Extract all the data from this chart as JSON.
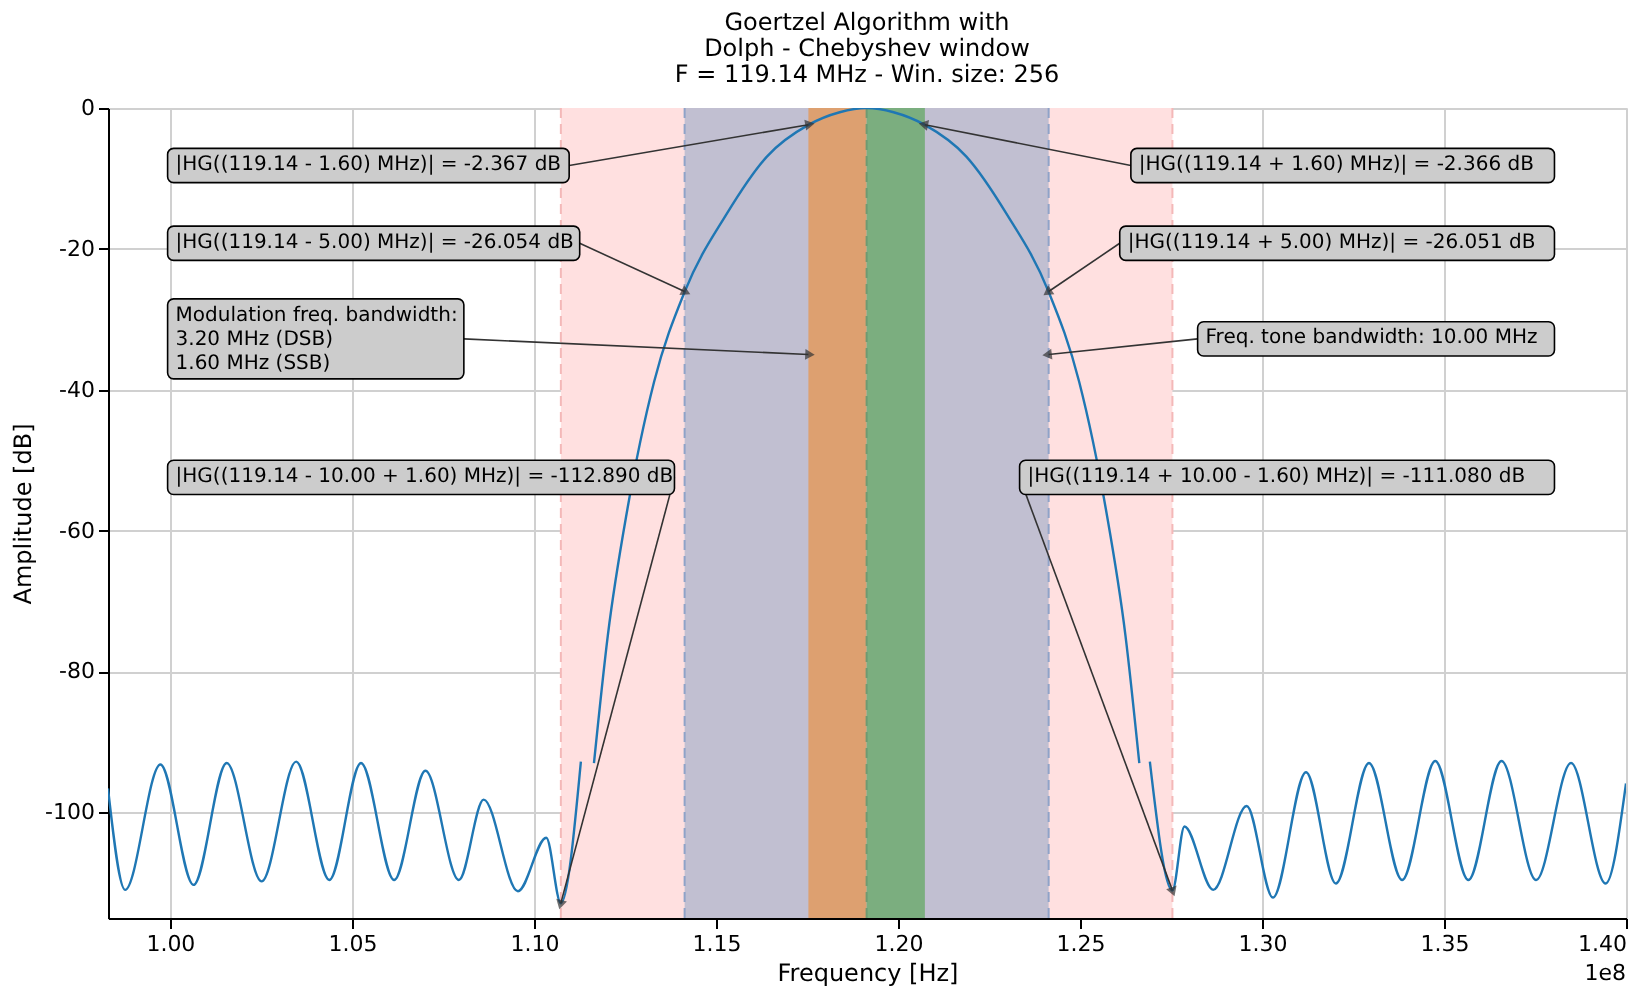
{
  "chart_data": {
    "type": "line",
    "title": "Goertzel Algorithm with\nDolph - Chebyshev window\nF = 119.14 MHz - Win. size: 256",
    "xlabel": "Frequency [Hz]",
    "ylabel": "Amplitude [dB]",
    "xlim": [
      0.983,
      1.4
    ],
    "xticks": [
      {
        "value": 1.0,
        "label": "1.00"
      },
      {
        "value": 1.05,
        "label": "1.05"
      },
      {
        "value": 1.1,
        "label": "1.10"
      },
      {
        "value": 1.15,
        "label": "1.15"
      },
      {
        "value": 1.2,
        "label": "1.20"
      },
      {
        "value": 1.25,
        "label": "1.25"
      },
      {
        "value": 1.3,
        "label": "1.30"
      },
      {
        "value": 1.35,
        "label": "1.35"
      },
      {
        "value": 1.4,
        "label": "1.40"
      }
    ],
    "ylim": [
      -115,
      0
    ],
    "yticks": [
      -100,
      -80,
      -60,
      -40,
      -20,
      0
    ],
    "grid": true,
    "line_style": "solid",
    "series": [
      {
        "color": "#1f77b4",
        "x": [
          0.983,
          0.9877,
          0.9974,
          1.0065,
          1.0156,
          1.0252,
          1.0347,
          1.0438,
          1.0525,
          1.0616,
          1.0702,
          1.0794,
          1.0862,
          1.0956,
          1.1034,
          1.1074,
          1.1129,
          1.1153,
          1.1165,
          1.1203,
          1.1257,
          1.133,
          1.1414,
          1.153,
          1.164,
          1.1754,
          1.184,
          1.1914,
          1.1988,
          1.2074,
          1.2188,
          1.2298,
          1.2414,
          1.2498,
          1.2571,
          1.2625,
          1.2663,
          1.267,
          1.2692,
          1.2754,
          1.2787,
          1.2866,
          1.2958,
          1.303,
          1.3121,
          1.3203,
          1.3294,
          1.3385,
          1.3476,
          1.3567,
          1.3658,
          1.3753,
          1.3849,
          1.3944,
          1.4
        ],
        "values": [
          -96.6,
          -111,
          -93.2,
          -110.3,
          -93.0,
          -109.8,
          -92.8,
          -109.6,
          -93.0,
          -109.6,
          -94.1,
          -109.6,
          -98.2,
          -111.2,
          -103.6,
          -112.9,
          -92.8,
          null,
          -93,
          -74.9,
          -56.9,
          -38.9,
          -26.1,
          -15,
          -6.9,
          -2.4,
          -0.6,
          0,
          -0.6,
          -2.4,
          -6.9,
          -15,
          -26.1,
          -38.9,
          -56.9,
          -74.9,
          -93,
          null,
          -92.8,
          -111.1,
          -102,
          -111,
          -99.1,
          -112.1,
          -94.3,
          -110.1,
          -93,
          -109.6,
          -92.7,
          -109.6,
          -92.7,
          -109.6,
          -93,
          -110.1,
          -95.9
        ]
      }
    ],
    "bands": [
      {
        "axis": "x",
        "from": 1.1074,
        "to": 1.2754,
        "color": "#ffe0e0"
      },
      {
        "axis": "x",
        "from": 1.1414,
        "to": 1.2414,
        "color": "#c1bfd1"
      },
      {
        "axis": "x",
        "from": 1.1754,
        "to": 1.1914,
        "color": "#dda070"
      },
      {
        "axis": "x",
        "from": 1.1914,
        "to": 1.2074,
        "color": "#7bae7f"
      }
    ],
    "ref_lines": [
      {
        "axis": "x",
        "value": 1.1074,
        "color": "#f4b8b8",
        "line_style": "dashed"
      },
      {
        "axis": "x",
        "value": 1.1414,
        "color": "#8fa3c8",
        "line_style": "dashed"
      },
      {
        "axis": "x",
        "value": 1.1914,
        "color": "#6e9a72",
        "line_style": "dashed"
      },
      {
        "axis": "x",
        "value": 1.2414,
        "color": "#8fa3c8",
        "line_style": "dashed"
      },
      {
        "axis": "x",
        "value": 1.2754,
        "color": "#f4b8b8",
        "line_style": "dashed"
      }
    ],
    "annotations": [
      {
        "text": "|HG((119.14 - 1.60) MHz)| = -2.367 dB",
        "x": 1.1754,
        "y": -2.367
      },
      {
        "text": "|HG((119.14 + 1.60) MHz)| = -2.366 dB",
        "x": 1.2074,
        "y": -2.366
      },
      {
        "text": "|HG((119.14 - 5.00) MHz)| = -26.054 dB",
        "x": 1.1414,
        "y": -26.054
      },
      {
        "text": "|HG((119.14 + 5.00) MHz)| = -26.051 dB",
        "x": 1.2414,
        "y": -26.051
      },
      {
        "text": "Modulation freq. bandwidth:\n3.20 MHz (DSB)\n1.60 MHz (SSB)",
        "x": 1.1754,
        "y": -35
      },
      {
        "text": "Freq. tone bandwidth: 10.00 MHz",
        "x": 1.2414,
        "y": -35
      },
      {
        "text": "|HG((119.14 - 10.00 + 1.60) MHz)| = -112.890 dB",
        "x": 1.1074,
        "y": -112.89
      },
      {
        "text": "|HG((119.14 + 10.00 - 1.60) MHz)| = -111.080 dB",
        "x": 1.2754,
        "y": -111.08
      },
      "1e8"
    ]
  }
}
